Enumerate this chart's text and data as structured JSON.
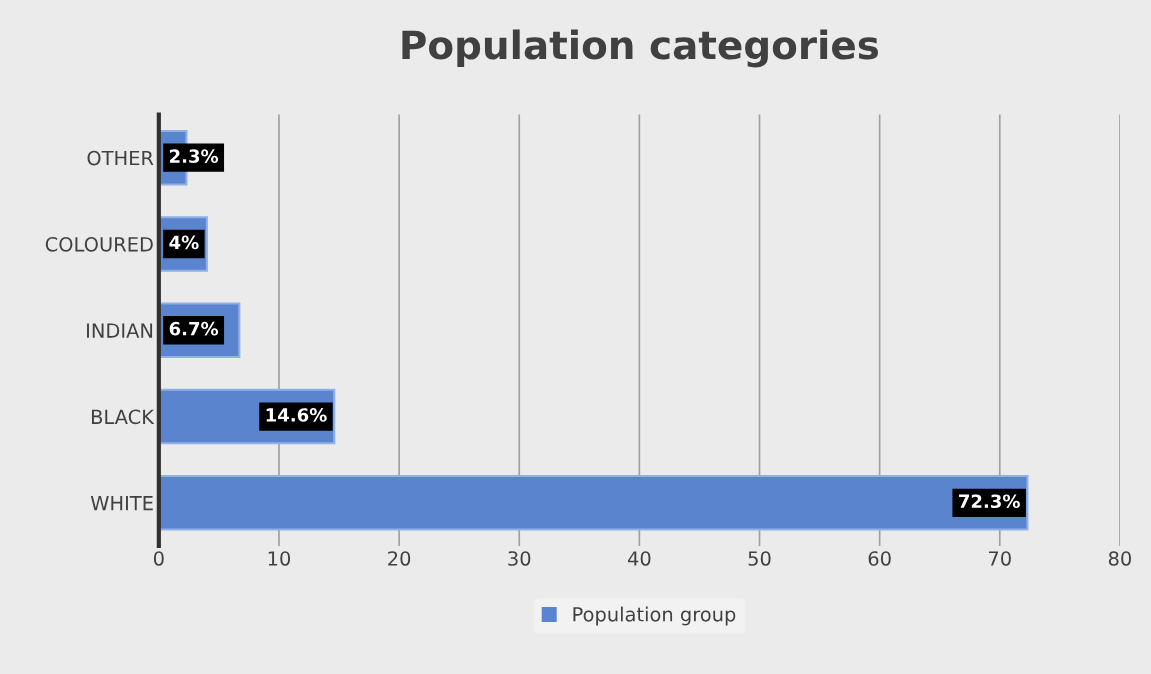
{
  "chart_data": {
    "type": "bar",
    "orientation": "horizontal",
    "title": "Population categories",
    "categories": [
      "OTHER",
      "COLOURED",
      "INDIAN",
      "BLACK",
      "WHITE"
    ],
    "series": [
      {
        "name": "Population group",
        "color": "#5b84cf",
        "values": [
          2.3,
          4,
          6.7,
          14.6,
          72.3
        ],
        "value_labels": [
          "2.3%",
          "4%",
          "6.7%",
          "14.6%",
          "72.3%"
        ]
      }
    ],
    "xlim": [
      0,
      80
    ],
    "xticks": [
      0,
      10,
      20,
      30,
      40,
      50,
      60,
      70,
      80
    ],
    "grid": "x",
    "legend": "bottom"
  }
}
